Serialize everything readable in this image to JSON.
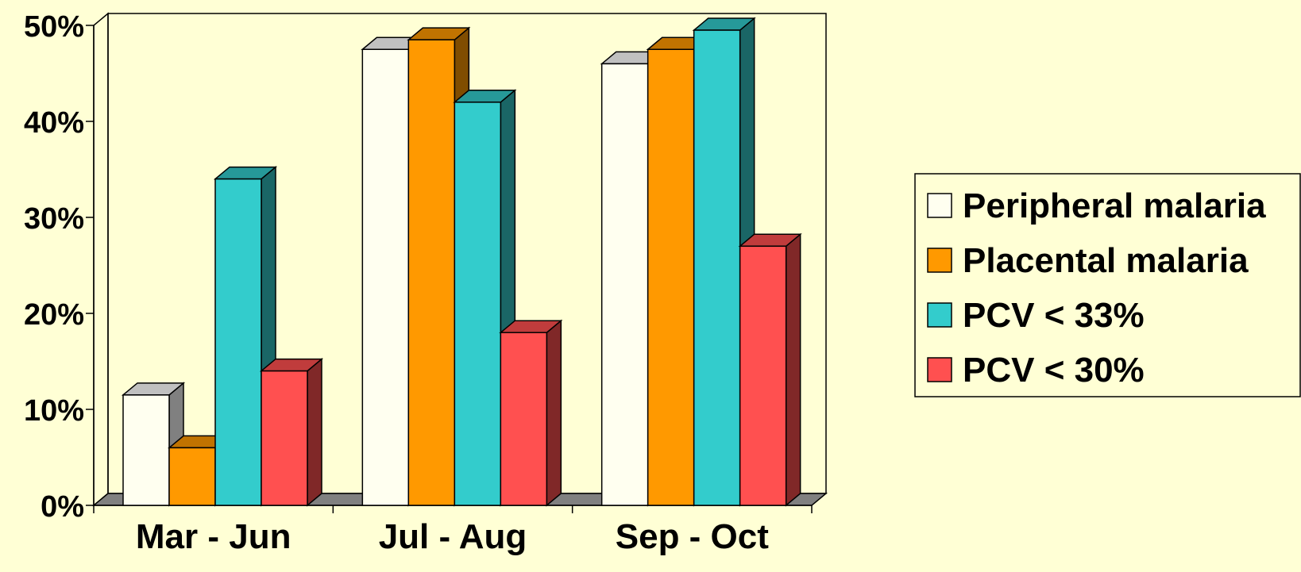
{
  "chart_data": {
    "type": "bar",
    "title": "",
    "xlabel": "",
    "ylabel": "",
    "ylim": [
      0,
      50
    ],
    "y_ticks": [
      "0%",
      "10%",
      "20%",
      "30%",
      "40%",
      "50%"
    ],
    "y_tick_values": [
      0,
      10,
      20,
      30,
      40,
      50
    ],
    "categories": [
      "Mar - Jun",
      "Jul - Aug",
      "Sep - Oct"
    ],
    "series": [
      {
        "name": "Peripheral malaria",
        "values": [
          11.5,
          47.5,
          46
        ],
        "color": "#FFFFF0",
        "side_color": "#808080",
        "top_color": "#C0C0C0"
      },
      {
        "name": "Placental malaria",
        "values": [
          6,
          48.5,
          47.5
        ],
        "color": "#FF9900",
        "side_color": "#804D00",
        "top_color": "#C07300"
      },
      {
        "name": "PCV < 33%",
        "values": [
          34,
          42,
          49.5
        ],
        "color": "#33CCCC",
        "side_color": "#1A6666",
        "top_color": "#269999"
      },
      {
        "name": "PCV < 30%",
        "values": [
          14,
          18,
          27
        ],
        "color": "#FF5050",
        "side_color": "#802828",
        "top_color": "#C03C3C"
      }
    ],
    "grid": false,
    "legend_position": "right",
    "three_d": true
  },
  "colors": {
    "background": "#FFFFD5",
    "floor": "#808080",
    "axis": "#000000"
  }
}
